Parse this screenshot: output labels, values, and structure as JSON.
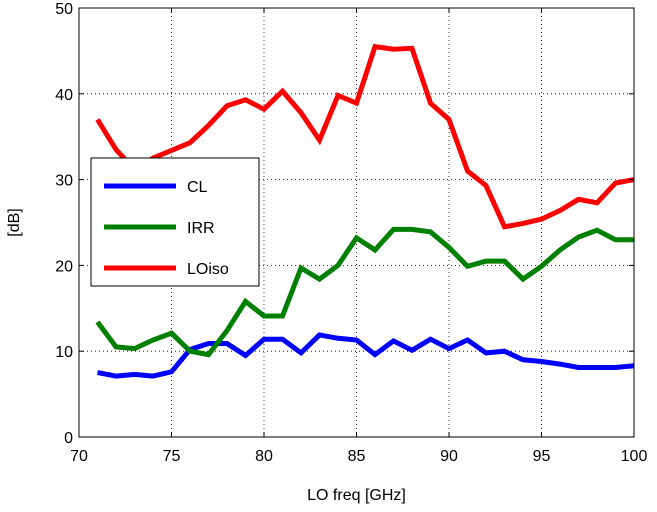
{
  "chart_data": {
    "type": "line",
    "title": "",
    "xlabel": "LO freq [GHz]",
    "ylabel": "[dB]",
    "xlim": [
      70,
      100
    ],
    "ylim": [
      0,
      50
    ],
    "xticks": [
      70,
      75,
      80,
      85,
      90,
      95,
      100
    ],
    "yticks": [
      0,
      10,
      20,
      30,
      40,
      50
    ],
    "grid": true,
    "legend_position": "left",
    "x": [
      71,
      72,
      73,
      74,
      75,
      76,
      77,
      78,
      79,
      80,
      81,
      82,
      83,
      84,
      85,
      86,
      87,
      88,
      89,
      90,
      91,
      92,
      93,
      94,
      95,
      96,
      97,
      98,
      99,
      100
    ],
    "series": [
      {
        "name": "CL",
        "color": "#0000ff",
        "values": [
          7.5,
          7.1,
          7.3,
          7.1,
          7.6,
          10.2,
          10.9,
          10.9,
          9.5,
          11.4,
          11.4,
          9.8,
          11.9,
          11.5,
          11.3,
          9.6,
          11.2,
          10.1,
          11.4,
          10.3,
          11.3,
          9.8,
          10.0,
          9.0,
          8.8,
          8.5,
          8.1,
          8.1,
          8.1,
          8.3
        ]
      },
      {
        "name": "IRR",
        "color": "#008000",
        "values": [
          13.4,
          10.5,
          10.3,
          11.3,
          12.1,
          10.0,
          9.6,
          12.4,
          15.8,
          14.1,
          14.1,
          19.7,
          18.4,
          20.0,
          23.2,
          21.8,
          24.2,
          24.2,
          23.9,
          22.1,
          19.9,
          20.5,
          20.5,
          18.4,
          19.9,
          21.8,
          23.3,
          24.1,
          23.0,
          23.0
        ]
      },
      {
        "name": "LOiso",
        "color": "#ff0000",
        "values": [
          37.0,
          33.5,
          31.2,
          32.5,
          33.4,
          34.3,
          36.3,
          38.6,
          39.3,
          38.2,
          40.3,
          37.8,
          34.6,
          39.8,
          38.9,
          45.5,
          45.2,
          45.3,
          38.9,
          37.0,
          31.0,
          29.3,
          24.5,
          24.9,
          25.4,
          26.4,
          27.7,
          27.3,
          29.6,
          30.0
        ]
      }
    ]
  }
}
